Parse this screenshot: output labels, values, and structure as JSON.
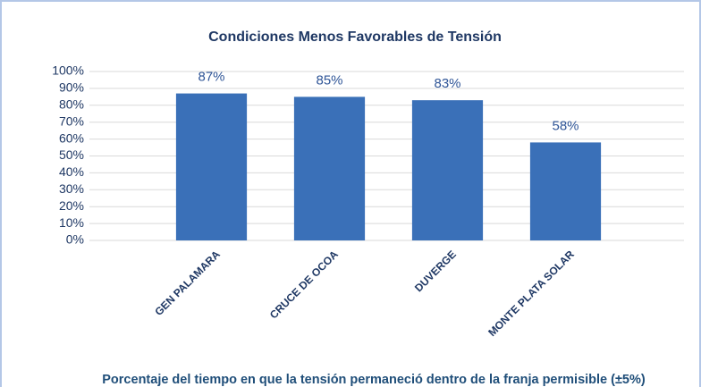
{
  "chart_data": {
    "type": "bar",
    "title": "Condiciones Menos Favorables de Tensión",
    "categories": [
      "GEN PALAMARA",
      "CRUCE DE OCOA",
      "DUVERGE",
      "MONTE PLATA SOLAR"
    ],
    "values": [
      87,
      85,
      83,
      58
    ],
    "value_labels": [
      "87%",
      "85%",
      "83%",
      "58%"
    ],
    "color": "#3a70b8",
    "xlabel": "Porcentaje del tiempo en que la tensión permaneció dentro de la franja permisible (±5%)",
    "ylim": [
      0,
      100
    ],
    "yticks": [
      {
        "value": 0,
        "label": "0%"
      },
      {
        "value": 10,
        "label": "10%"
      },
      {
        "value": 20,
        "label": "20%"
      },
      {
        "value": 30,
        "label": "30%"
      },
      {
        "value": 40,
        "label": "40%"
      },
      {
        "value": 50,
        "label": "50%"
      },
      {
        "value": 60,
        "label": "60%"
      },
      {
        "value": 70,
        "label": "70%"
      },
      {
        "value": 80,
        "label": "80%"
      },
      {
        "value": 90,
        "label": "90%"
      },
      {
        "value": 100,
        "label": "100%"
      }
    ],
    "grid": true
  }
}
